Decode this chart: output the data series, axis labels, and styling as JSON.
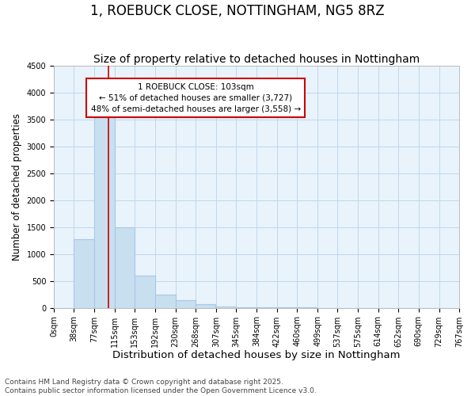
{
  "title": "1, ROEBUCK CLOSE, NOTTINGHAM, NG5 8RZ",
  "subtitle": "Size of property relative to detached houses in Nottingham",
  "xlabel": "Distribution of detached houses by size in Nottingham",
  "ylabel": "Number of detached properties",
  "annotation_text": "1 ROEBUCK CLOSE: 103sqm\n← 51% of detached houses are smaller (3,727)\n48% of semi-detached houses are larger (3,558) →",
  "vline_x": 103,
  "vline_color": "#cc0000",
  "bar_color": "#c8dff0",
  "bar_edge_color": "#a8c8e8",
  "plot_bg_color": "#e8f3fb",
  "background_color": "#ffffff",
  "annotation_box_color": "#ffffff",
  "annotation_box_edge": "#cc0000",
  "grid_color": "#c0d8ec",
  "bins_left": [
    0,
    38,
    77,
    115,
    153,
    192,
    230,
    268,
    307,
    345,
    384,
    422,
    460,
    499,
    537,
    575,
    614,
    652,
    690,
    729
  ],
  "bin_width": 38,
  "bar_heights": [
    0,
    1280,
    3540,
    1490,
    600,
    250,
    140,
    70,
    30,
    15,
    5,
    3,
    2,
    1,
    0,
    0,
    0,
    0,
    0,
    0
  ],
  "xlim": [
    0,
    767
  ],
  "ylim": [
    0,
    4500
  ],
  "yticks": [
    0,
    500,
    1000,
    1500,
    2000,
    2500,
    3000,
    3500,
    4000,
    4500
  ],
  "xtick_labels": [
    "0sqm",
    "38sqm",
    "77sqm",
    "115sqm",
    "153sqm",
    "192sqm",
    "230sqm",
    "268sqm",
    "307sqm",
    "345sqm",
    "384sqm",
    "422sqm",
    "460sqm",
    "499sqm",
    "537sqm",
    "575sqm",
    "614sqm",
    "652sqm",
    "690sqm",
    "729sqm",
    "767sqm"
  ],
  "xtick_positions": [
    0,
    38,
    77,
    115,
    153,
    192,
    230,
    268,
    307,
    345,
    384,
    422,
    460,
    499,
    537,
    575,
    614,
    652,
    690,
    729,
    767
  ],
  "footnote1": "Contains HM Land Registry data © Crown copyright and database right 2025.",
  "footnote2": "Contains public sector information licensed under the Open Government Licence v3.0.",
  "title_fontsize": 12,
  "subtitle_fontsize": 10,
  "xlabel_fontsize": 9.5,
  "ylabel_fontsize": 8.5,
  "tick_fontsize": 7,
  "footnote_fontsize": 6.5,
  "annotation_fontsize": 7.5
}
